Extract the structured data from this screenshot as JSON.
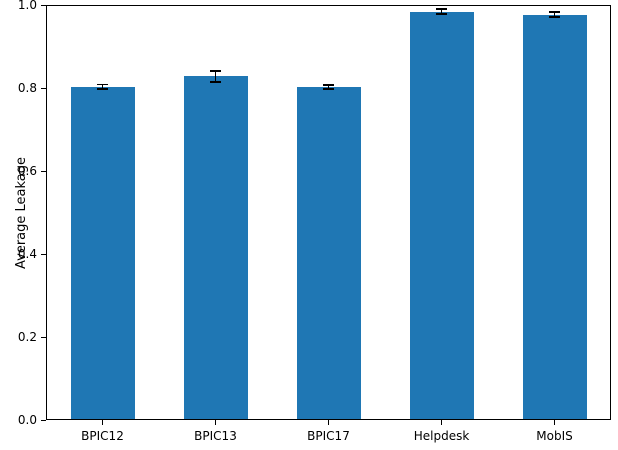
{
  "chart_data": {
    "type": "bar",
    "title": "",
    "xlabel": "",
    "ylabel": "Average Leakage",
    "categories": [
      "BPIC12",
      "BPIC13",
      "BPIC17",
      "Helpdesk",
      "MobIS"
    ],
    "values": [
      0.803,
      0.828,
      0.802,
      0.984,
      0.977
    ],
    "errors": [
      0.005,
      0.013,
      0.005,
      0.006,
      0.006
    ],
    "ylim": [
      0.0,
      1.0
    ],
    "ytick_values": [
      0.0,
      0.2,
      0.4,
      0.6,
      0.8,
      1.0
    ],
    "ytick_labels": [
      "0.0",
      "0.2",
      "0.4",
      "0.6",
      "0.8",
      "1.0"
    ],
    "grid": false,
    "legend": "none",
    "bar_color": "#1f77b4",
    "error_color": "#000000"
  }
}
